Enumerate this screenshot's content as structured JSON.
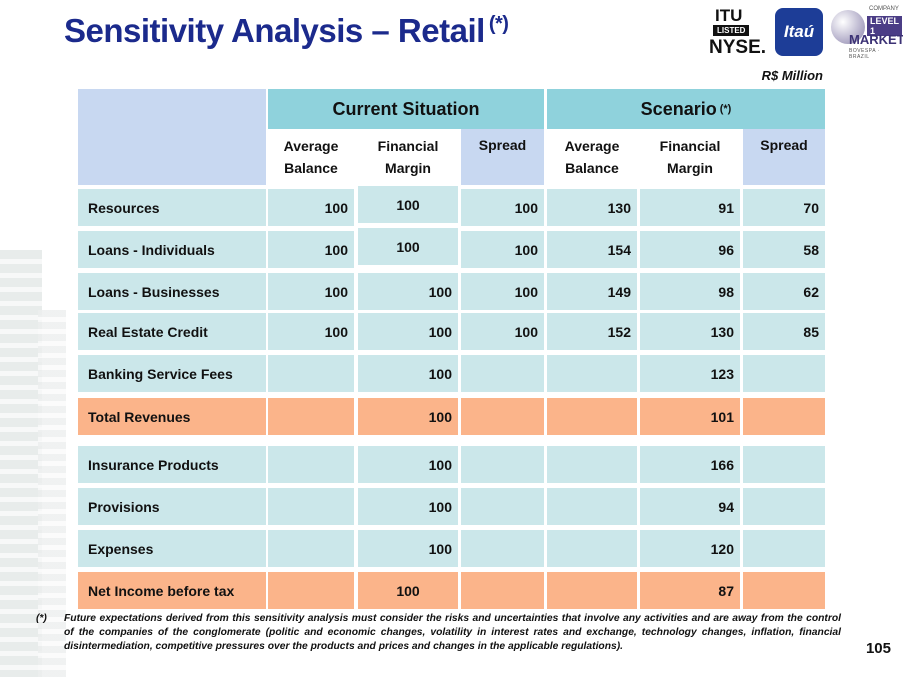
{
  "title": "Sensitivity Analysis – Retail",
  "title_note": "(*)",
  "logos": {
    "itu_top": "ITU",
    "itu_listed": "LISTED",
    "itu_nyse": "NYSE.",
    "itau": "Itaú",
    "level1_company": "COMPANY",
    "level1_level": "LEVEL 1",
    "level1_market": "MARKET",
    "level1_bovespa": "BOVESPA · BRAZIL"
  },
  "unit": "R$ Million",
  "table": {
    "group_headers": {
      "current": "Current Situation",
      "scenario": "Scenario",
      "scenario_note": "(*)"
    },
    "column_headers": {
      "avg_balance_1": "Average",
      "avg_balance_2": "Balance",
      "fin_margin_1": "Financial",
      "fin_margin_2": "Margin",
      "spread": "Spread"
    },
    "rows": [
      {
        "label": "Resources",
        "cur_avg": "100",
        "cur_fm": "100",
        "cur_spread": "100",
        "sc_avg": "130",
        "sc_fm": "91",
        "sc_spread": "70"
      },
      {
        "label": "Loans - Individuals",
        "cur_avg": "100",
        "cur_fm": "100",
        "cur_spread": "100",
        "sc_avg": "154",
        "sc_fm": "96",
        "sc_spread": "58"
      },
      {
        "label": "Loans - Businesses",
        "cur_avg": "100",
        "cur_fm": "100",
        "cur_spread": "100",
        "sc_avg": "149",
        "sc_fm": "98",
        "sc_spread": "62"
      },
      {
        "label": "Real Estate Credit",
        "cur_avg": "100",
        "cur_fm": "100",
        "cur_spread": "100",
        "sc_avg": "152",
        "sc_fm": "130",
        "sc_spread": "85"
      },
      {
        "label": "Banking Service Fees",
        "cur_avg": "",
        "cur_fm": "100",
        "cur_spread": "",
        "sc_avg": "",
        "sc_fm": "123",
        "sc_spread": ""
      },
      {
        "label": "Total Revenues",
        "cur_avg": "",
        "cur_fm": "100",
        "cur_spread": "",
        "sc_avg": "",
        "sc_fm": "101",
        "sc_spread": "",
        "highlight": true
      },
      {
        "label": "Insurance Products",
        "cur_avg": "",
        "cur_fm": "100",
        "cur_spread": "",
        "sc_avg": "",
        "sc_fm": "166",
        "sc_spread": ""
      },
      {
        "label": "Provisions",
        "cur_avg": "",
        "cur_fm": "100",
        "cur_spread": "",
        "sc_avg": "",
        "sc_fm": "94",
        "sc_spread": ""
      },
      {
        "label": "Expenses",
        "cur_avg": "",
        "cur_fm": "100",
        "cur_spread": "",
        "sc_avg": "",
        "sc_fm": "120",
        "sc_spread": ""
      },
      {
        "label": "Net Income before tax",
        "cur_avg": "",
        "cur_fm": "100",
        "cur_spread": "",
        "sc_avg": "",
        "sc_fm": "87",
        "sc_spread": "",
        "highlight": true
      }
    ]
  },
  "footnote": {
    "mark": "(*)",
    "text": "Future expectations derived from this sensitivity analysis must consider the risks and uncertainties that involve any activities and are away from the control of the companies of the conglomerate (politic and economic changes, volatility in interest rates and exchange, technology changes, inflation, financial disintermediation, competitive pressures over the products and prices and changes in the applicable regulations)."
  },
  "page_number": "105"
}
